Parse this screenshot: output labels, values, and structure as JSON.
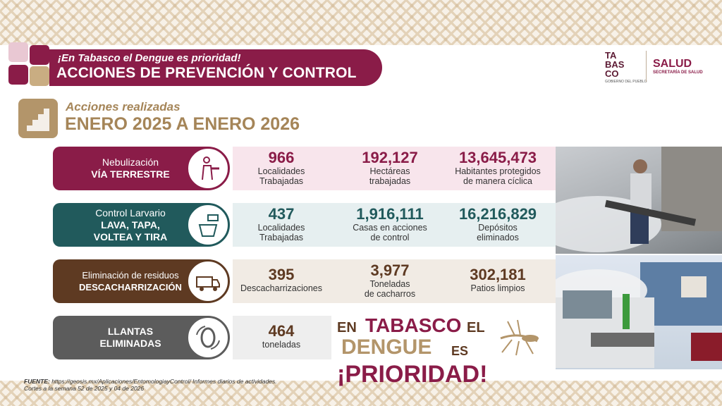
{
  "header": {
    "subtitle": "¡En Tabasco el Dengue es prioridad!",
    "title": "ACCIONES DE PREVENCIÓN Y CONTROL"
  },
  "gobierno_logo": {
    "line1": "TA",
    "line2": "BAS",
    "line3": "CO",
    "caption": "GOBIERNO DEL PUEBLO"
  },
  "salud_logo": {
    "title": "SALUD",
    "subtitle": "SECRETARÍA DE SALUD"
  },
  "section": {
    "subtitle": "Acciones realizadas",
    "title": "ENERO 2025 A ENERO 2026"
  },
  "rows": [
    {
      "label_line1": "Nebulización",
      "label_line2": "VÍA TERRESTRE",
      "icon": "fumigator-person-icon",
      "color": "#8a1c48",
      "bg": "#f8e5ec",
      "stats": [
        {
          "value": "966",
          "desc1": "Localidades",
          "desc2": "Trabajadas"
        },
        {
          "value": "192,127",
          "desc1": "Hectáreas",
          "desc2": "trabajadas"
        },
        {
          "value": "13,645,473",
          "desc1": "Habitantes protegidos",
          "desc2": "de manera cíclica"
        }
      ]
    },
    {
      "label_line1": "Control Larvario",
      "label_line2": "LAVA, TAPA,",
      "label_line3": "VOLTEA Y TIRA",
      "icon": "bucket-container-icon",
      "color": "#215a5c",
      "bg": "#e6eff0",
      "stats": [
        {
          "value": "437",
          "desc1": "Localidades",
          "desc2": "Trabajadas"
        },
        {
          "value": "1,916,111",
          "desc1": "Casas en acciones",
          "desc2": "de control"
        },
        {
          "value": "16,216,829",
          "desc1": "Depósitos",
          "desc2": "eliminados"
        }
      ]
    },
    {
      "label_line1": "Eliminación de residuos",
      "label_line2": "DESCACHARRIZACIÓN",
      "icon": "truck-icon",
      "color": "#5e3a22",
      "bg": "#f1ebe4",
      "stats": [
        {
          "value": "395",
          "desc1": "Descacharrizaciones",
          "desc2": ""
        },
        {
          "value": "3,977",
          "desc1": "Toneladas",
          "desc2": "de cacharros"
        },
        {
          "value": "302,181",
          "desc1": "Patios limpios",
          "desc2": ""
        }
      ]
    },
    {
      "label_line1": "LLANTAS",
      "label_line2": "ELIMINADAS",
      "icon": "tire-recycle-icon",
      "color": "#5c5c5c",
      "bg": "#eeeeee",
      "stats": [
        {
          "value": "464",
          "desc1": "toneladas",
          "desc2": ""
        }
      ]
    }
  ],
  "slogan": {
    "part1": "EN",
    "part2": "TABASCO",
    "part3": "EL",
    "part4": "DENGUE",
    "part5": "ES",
    "part6": "¡PRIORIDAD!"
  },
  "fuente": {
    "label": "FUENTE:",
    "text": " https://geosis.mx/Aplicaciones/EntomologiayControl/ Informes diarios de actividades.",
    "line2": "Cortes a la semana 52 de 2025 y 04 de 2026"
  },
  "colors": {
    "guinda": "#8a1c48",
    "gold": "#a58558",
    "teal": "#215a5c",
    "brown": "#5e3a22",
    "gray": "#5c5c5c"
  }
}
